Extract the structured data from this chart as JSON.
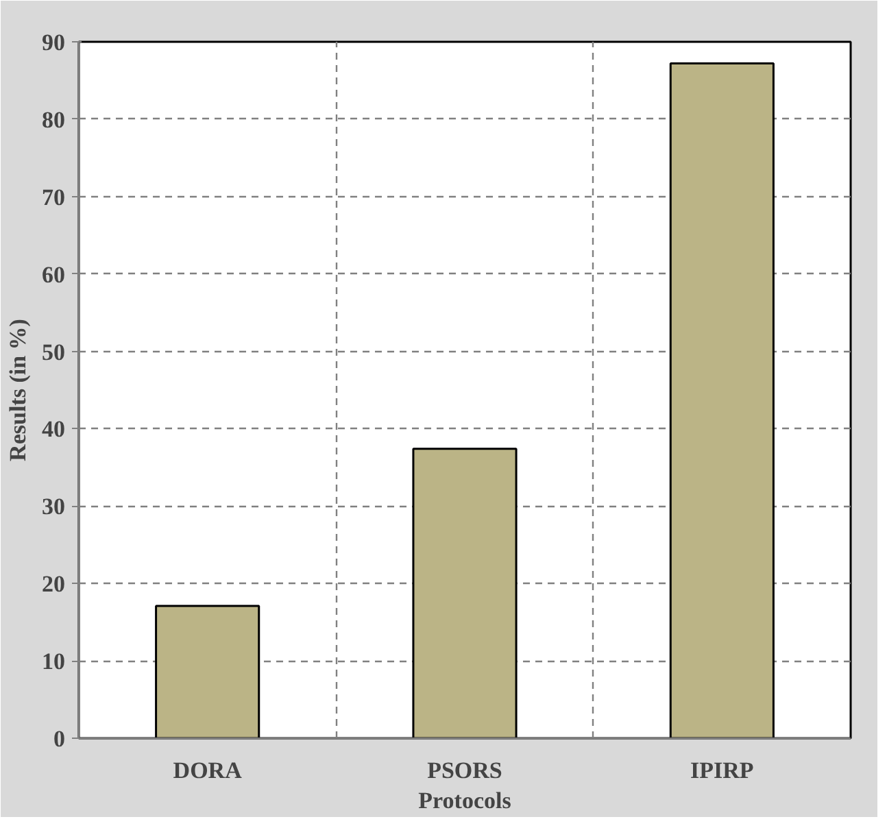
{
  "chart_data": {
    "type": "bar",
    "xlabel": "Protocols",
    "ylabel": "Results (in %)",
    "categories": [
      "DORA",
      "PSORS",
      "IPIRP"
    ],
    "values": [
      17.1,
      37.4,
      87.2
    ],
    "color": "#bbb486",
    "ylim": [
      0,
      90
    ],
    "yticks": [
      0,
      10,
      20,
      30,
      40,
      50,
      60,
      70,
      80,
      90
    ],
    "grid": true
  }
}
